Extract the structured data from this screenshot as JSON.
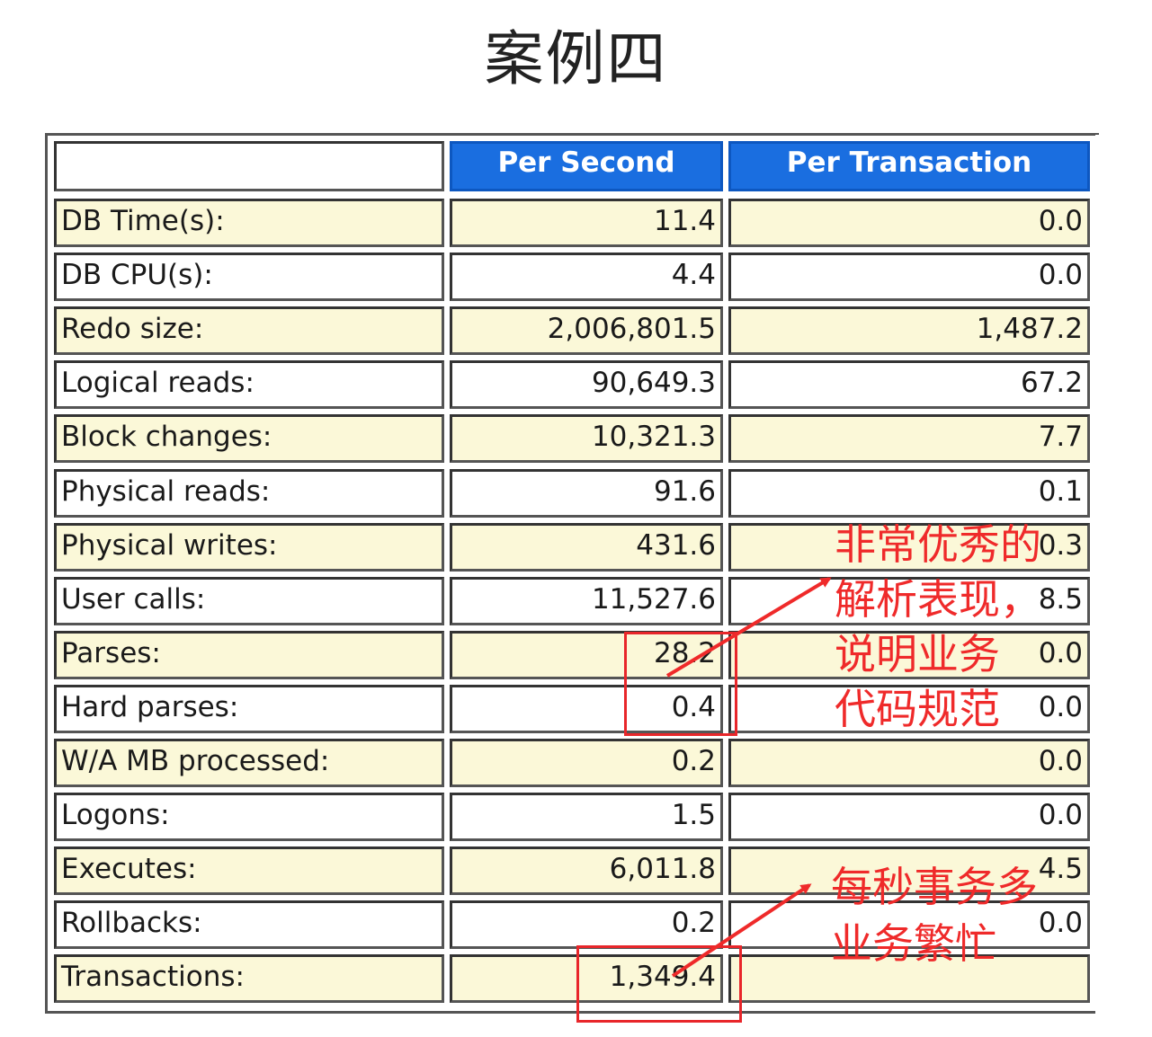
{
  "title": "案例四",
  "headers": [
    "",
    "Per Second",
    "Per Transaction"
  ],
  "rows": [
    {
      "label": "DB Time(s):",
      "per_second": "11.4",
      "per_transaction": "0.0"
    },
    {
      "label": "DB CPU(s):",
      "per_second": "4.4",
      "per_transaction": "0.0"
    },
    {
      "label": "Redo size:",
      "per_second": "2,006,801.5",
      "per_transaction": "1,487.2"
    },
    {
      "label": "Logical reads:",
      "per_second": "90,649.3",
      "per_transaction": "67.2"
    },
    {
      "label": "Block changes:",
      "per_second": "10,321.3",
      "per_transaction": "7.7"
    },
    {
      "label": "Physical reads:",
      "per_second": "91.6",
      "per_transaction": "0.1"
    },
    {
      "label": "Physical writes:",
      "per_second": "431.6",
      "per_transaction": "0.3"
    },
    {
      "label": "User calls:",
      "per_second": "11,527.6",
      "per_transaction": "8.5"
    },
    {
      "label": "Parses:",
      "per_second": "28.2",
      "per_transaction": "0.0"
    },
    {
      "label": "Hard parses:",
      "per_second": "0.4",
      "per_transaction": "0.0"
    },
    {
      "label": "W/A MB processed:",
      "per_second": "0.2",
      "per_transaction": "0.0"
    },
    {
      "label": "Logons:",
      "per_second": "1.5",
      "per_transaction": "0.0"
    },
    {
      "label": "Executes:",
      "per_second": "6,011.8",
      "per_transaction": "4.5"
    },
    {
      "label": "Rollbacks:",
      "per_second": "0.2",
      "per_transaction": "0.0"
    },
    {
      "label": "Transactions:",
      "per_second": "1,349.4",
      "per_transaction": ""
    }
  ],
  "annotations": {
    "parse_note": [
      "非常优秀的",
      "解析表现，",
      "说明业务",
      "代码规范"
    ],
    "txn_note": [
      "每秒事务多",
      "业务繁忙"
    ],
    "color": "#ef2a2a"
  },
  "colors": {
    "header_bg": "#1a6ee0",
    "shaded_row": "#fbf8d8",
    "plain_row": "#ffffff"
  }
}
